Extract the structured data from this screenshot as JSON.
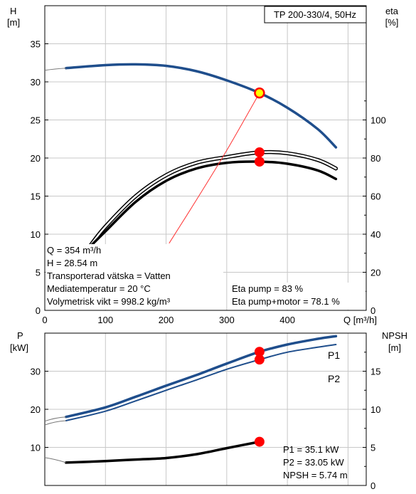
{
  "chart_data": [
    {
      "type": "line",
      "title": "TP 200-330/4, 50Hz",
      "ylabel_left": [
        "H",
        "[m]"
      ],
      "ylabel_right": [
        "eta",
        "[%]"
      ],
      "xlabel": "Q [m³/h]",
      "xlim": [
        0,
        530
      ],
      "ylim_left": [
        0,
        40
      ],
      "ylim_right": [
        0,
        160
      ],
      "x_ticks": [
        0,
        100,
        200,
        300,
        400
      ],
      "y_ticks_left": [
        0,
        5,
        10,
        15,
        20,
        25,
        30,
        35
      ],
      "y_ticks_right": [
        0,
        20,
        40,
        60,
        80,
        100
      ],
      "grid": true,
      "series": [
        {
          "axis": "left",
          "color": "#1f4e8c",
          "x": [
            35,
            100,
            150,
            200,
            250,
            300,
            354,
            400,
            450,
            480
          ],
          "y": [
            31.8,
            32.2,
            32.3,
            32.1,
            31.4,
            30.2,
            28.54,
            26.6,
            23.8,
            21.4
          ]
        },
        {
          "axis": "right",
          "color": "#000000",
          "x": [
            75,
            100,
            150,
            200,
            250,
            300,
            354,
            400,
            450,
            480
          ],
          "y": [
            34,
            44,
            60,
            71,
            77.5,
            80.5,
            83,
            82.5,
            79,
            74.5
          ]
        },
        {
          "axis": "right",
          "color": "#000000",
          "x": [
            70,
            100,
            150,
            200,
            250,
            300,
            354,
            400,
            450,
            480
          ],
          "y": [
            32,
            41.5,
            57,
            68,
            74.5,
            77.5,
            78.1,
            77,
            73.5,
            69
          ]
        },
        {
          "axis": "left",
          "color": "#ff3333",
          "x": [
            205,
            250,
            300,
            354
          ],
          "y": [
            8.8,
            14.5,
            21,
            28.54
          ]
        }
      ],
      "annotations": {
        "operating_lines": [
          "Q = 354 m³/h",
          "H = 28.54 m",
          "Transporterad vätska = Vatten",
          "Mediatemperatur = 20 °C",
          "Volymetrisk vikt = 998.2 kg/m³"
        ],
        "eta_lines": [
          "Eta pump = 83 %",
          "Eta pump+motor = 78.1 %"
        ]
      },
      "markers": [
        {
          "axis": "left",
          "x": 354,
          "y": 28.54,
          "color": "#ffff00"
        },
        {
          "axis": "right",
          "x": 354,
          "y": 83,
          "color": "#ff0000"
        },
        {
          "axis": "right",
          "x": 354,
          "y": 78.1,
          "color": "#ff0000"
        }
      ]
    },
    {
      "type": "line",
      "ylabel_left": [
        "P",
        "[kW]"
      ],
      "ylabel_right": [
        "NPSH",
        "[m]"
      ],
      "xlim": [
        0,
        530
      ],
      "ylim_left": [
        0,
        40
      ],
      "ylim_right": [
        0,
        20
      ],
      "y_ticks_left": [
        10,
        20,
        30
      ],
      "y_ticks_right": [
        0,
        5,
        10,
        15
      ],
      "grid": true,
      "series": [
        {
          "name": "P1",
          "axis": "left",
          "color": "#1f4e8c",
          "x": [
            35,
            100,
            150,
            200,
            250,
            300,
            354,
            400,
            450,
            480
          ],
          "y": [
            18,
            20.5,
            23.3,
            26.2,
            29,
            32,
            35.1,
            37,
            38.5,
            39.2
          ]
        },
        {
          "name": "P2",
          "axis": "left",
          "color": "#1f4e8c",
          "x": [
            35,
            100,
            150,
            200,
            250,
            300,
            354,
            400,
            450,
            480
          ],
          "y": [
            17,
            19.5,
            22.2,
            25,
            27.7,
            30.5,
            33.05,
            35,
            36.3,
            37
          ]
        },
        {
          "axis": "right",
          "color": "#000000",
          "x": [
            35,
            100,
            150,
            200,
            250,
            300,
            354
          ],
          "y": [
            3,
            3.2,
            3.4,
            3.6,
            4.1,
            4.9,
            5.74
          ]
        }
      ],
      "annotations": {
        "values": [
          "P1 = 35.1 kW",
          "P2 = 33.05 kW",
          "NPSH = 5.74 m"
        ]
      },
      "markers": [
        {
          "axis": "left",
          "x": 354,
          "y": 35.1,
          "color": "#ff0000"
        },
        {
          "axis": "left",
          "x": 354,
          "y": 33.05,
          "color": "#ff0000"
        },
        {
          "axis": "right",
          "x": 354,
          "y": 5.74,
          "color": "#ff0000"
        }
      ]
    }
  ]
}
